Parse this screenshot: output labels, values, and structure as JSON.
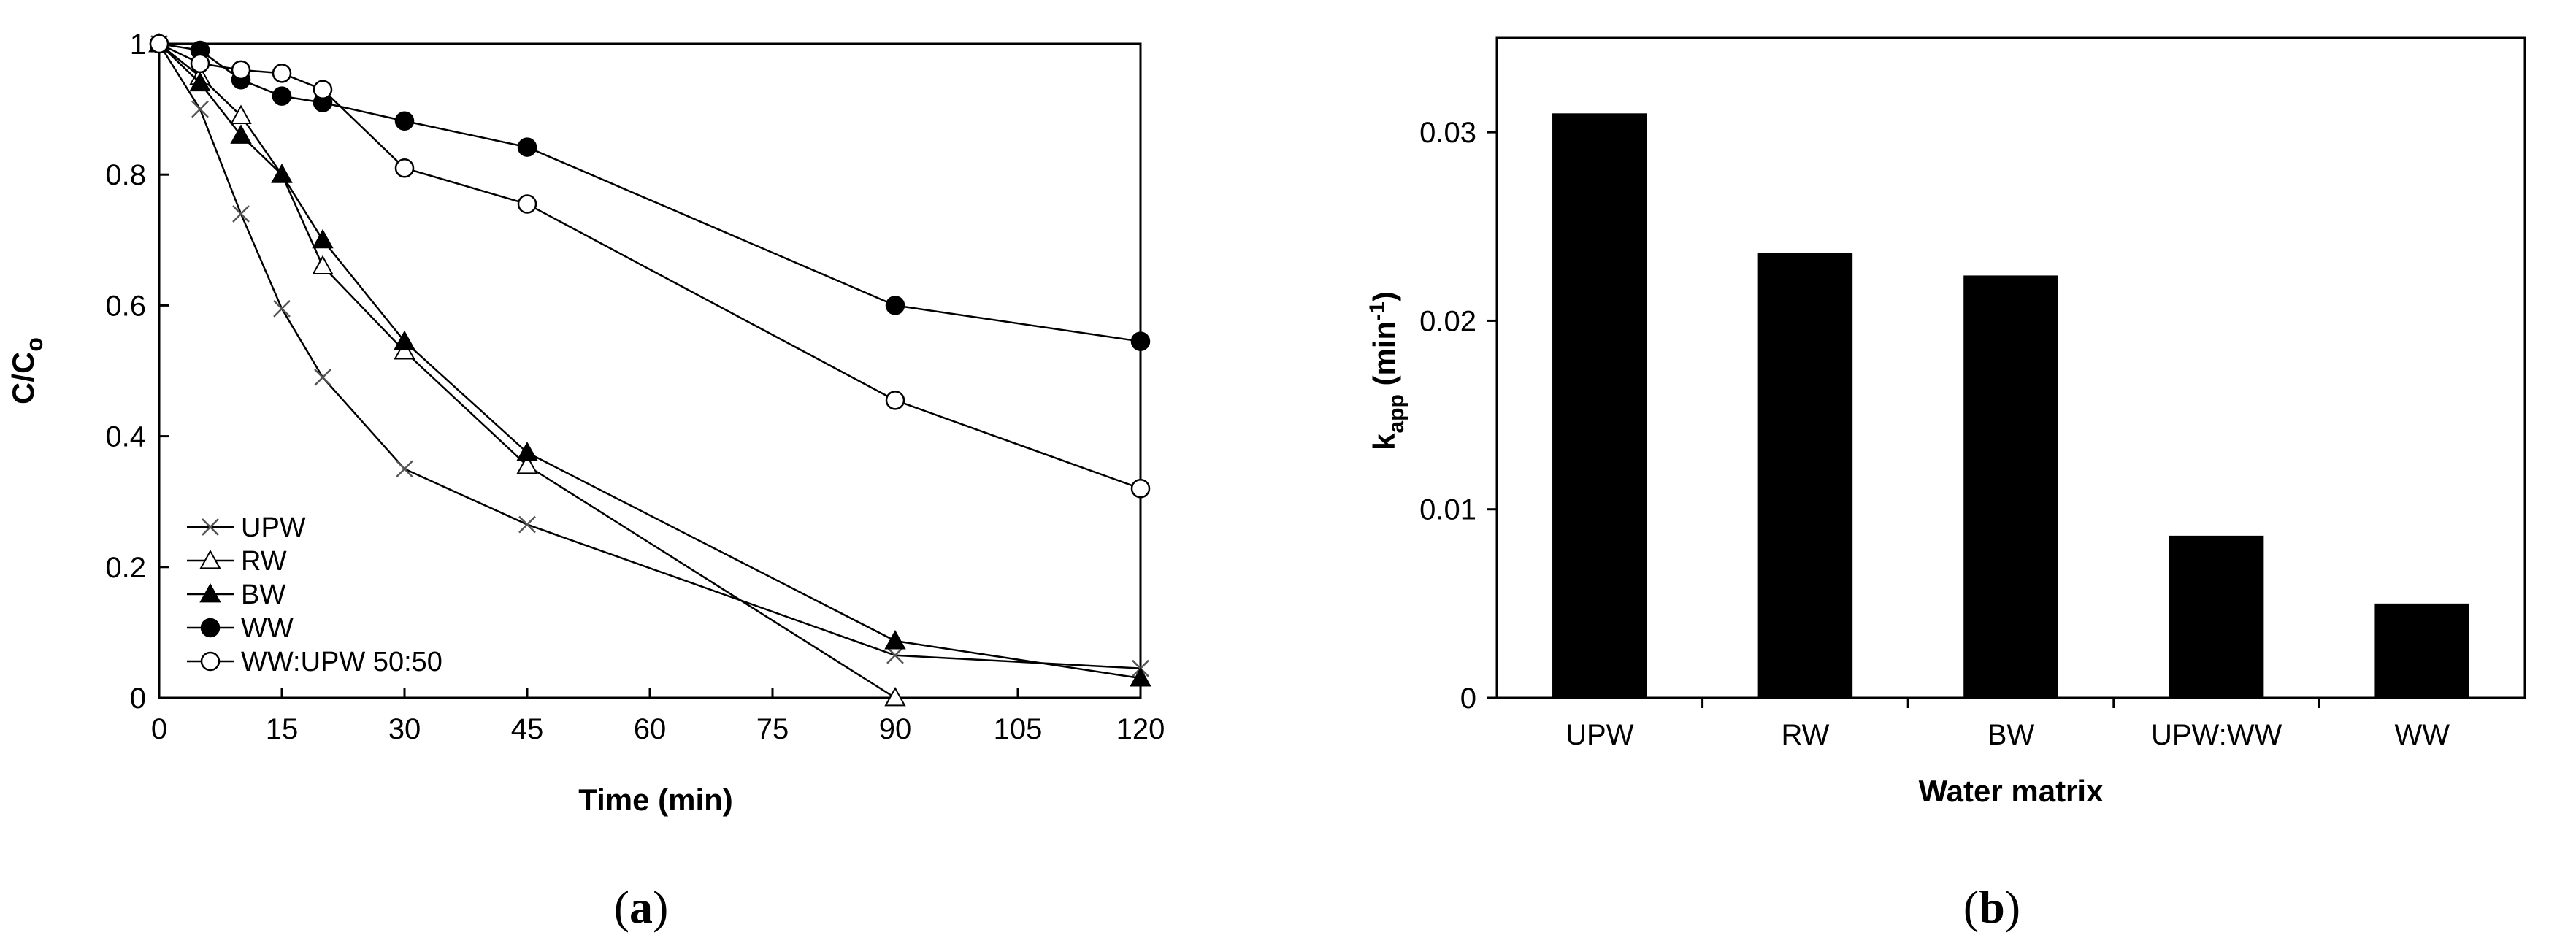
{
  "chart_data": [
    {
      "panel_label": "a",
      "type": "line",
      "xlabel": "Time (min)",
      "ylabel_main": "C/C",
      "ylabel_sub": "o",
      "xlim": [
        0,
        120
      ],
      "ylim": [
        0,
        1
      ],
      "xticks": [
        0,
        15,
        30,
        45,
        60,
        75,
        90,
        105,
        120
      ],
      "yticks": [
        0,
        0.2,
        0.4,
        0.6,
        0.8,
        1
      ],
      "ytick_labels": [
        "0",
        "0.2",
        "0.4",
        "0.6",
        "0.8",
        "1"
      ],
      "grid": false,
      "legend_position": "bottom-left",
      "series": [
        {
          "name": "UPW",
          "marker": "cross",
          "x": [
            0,
            5,
            10,
            15,
            20,
            30,
            45,
            90,
            120
          ],
          "y": [
            1.0,
            0.9,
            0.74,
            0.595,
            0.49,
            0.35,
            0.265,
            0.065,
            0.045
          ]
        },
        {
          "name": "RW",
          "marker": "triangle-open",
          "x": [
            0,
            5,
            10,
            15,
            20,
            30,
            45,
            90
          ],
          "y": [
            1.0,
            0.95,
            0.89,
            0.8,
            0.66,
            0.53,
            0.355,
            0.0
          ]
        },
        {
          "name": "BW",
          "marker": "triangle-filled",
          "x": [
            0,
            5,
            10,
            15,
            20,
            30,
            45,
            90,
            120
          ],
          "y": [
            1.0,
            0.94,
            0.86,
            0.8,
            0.7,
            0.545,
            0.375,
            0.087,
            0.03
          ]
        },
        {
          "name": "WW",
          "marker": "circle-filled",
          "x": [
            0,
            5,
            10,
            15,
            20,
            30,
            45,
            90,
            120
          ],
          "y": [
            1.0,
            0.99,
            0.945,
            0.92,
            0.91,
            0.882,
            0.842,
            0.6,
            0.545
          ]
        },
        {
          "name": "WW:UPW 50:50",
          "marker": "circle-open",
          "x": [
            0,
            5,
            10,
            15,
            20,
            30,
            45,
            90,
            120
          ],
          "y": [
            1.0,
            0.97,
            0.96,
            0.955,
            0.93,
            0.81,
            0.755,
            0.455,
            0.32
          ]
        }
      ]
    },
    {
      "panel_label": "b",
      "type": "bar",
      "xlabel": "Water matrix",
      "ylabel_main": "k",
      "ylabel_sub": "app",
      "ylabel_unit_pre": " (min",
      "ylabel_unit_sup": "-1",
      "ylabel_unit_post": ")",
      "ylim": [
        0,
        0.035
      ],
      "yticks": [
        0,
        0.01,
        0.02,
        0.03
      ],
      "ytick_labels": [
        "0",
        "0.01",
        "0.02",
        "0.03"
      ],
      "grid": false,
      "categories": [
        "UPW",
        "RW",
        "BW",
        "UPW:WW",
        "WW"
      ],
      "values": [
        0.031,
        0.0236,
        0.0224,
        0.0086,
        0.005
      ],
      "bar_color": "#000000"
    }
  ]
}
